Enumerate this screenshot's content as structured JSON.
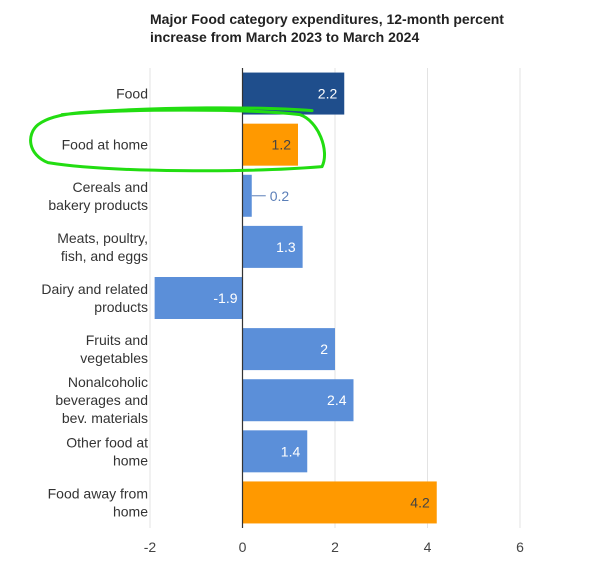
{
  "chart_data": {
    "type": "bar",
    "orientation": "horizontal",
    "title": "Major Food category expenditures, 12-month percent\nincrease from March 2023 to March 2024",
    "xlabel": "",
    "ylabel": "",
    "xlim": [
      -2,
      6
    ],
    "xticks": [
      -2,
      0,
      2,
      4,
      6
    ],
    "grid": true,
    "legend": "none",
    "categories": [
      "Food",
      "Food at home",
      "Cereals and\nbakery products",
      "Meats, poultry,\nfish, and eggs",
      "Dairy and related\nproducts",
      "Fruits and\nvegetables",
      "Nonalcoholic\nbeverages and\nbev. materials",
      "Other food at\nhome",
      "Food away from\nhome"
    ],
    "values": [
      2.2,
      1.2,
      0.2,
      1.3,
      -1.9,
      2,
      2.4,
      1.4,
      4.2
    ],
    "bar_colors": [
      "#1f4e8c",
      "#ff9900",
      "#5b8fd9",
      "#5b8fd9",
      "#5b8fd9",
      "#5b8fd9",
      "#5b8fd9",
      "#5b8fd9",
      "#ff9900"
    ],
    "label_colors": [
      "#ffffff",
      "#444444",
      "#5b7fb8",
      "#ffffff",
      "#ffffff",
      "#ffffff",
      "#ffffff",
      "#ffffff",
      "#444444"
    ],
    "highlight_annotation": {
      "shape": "hand-drawn ellipse",
      "color": "#22dd11",
      "target_category": "Food at home"
    }
  }
}
